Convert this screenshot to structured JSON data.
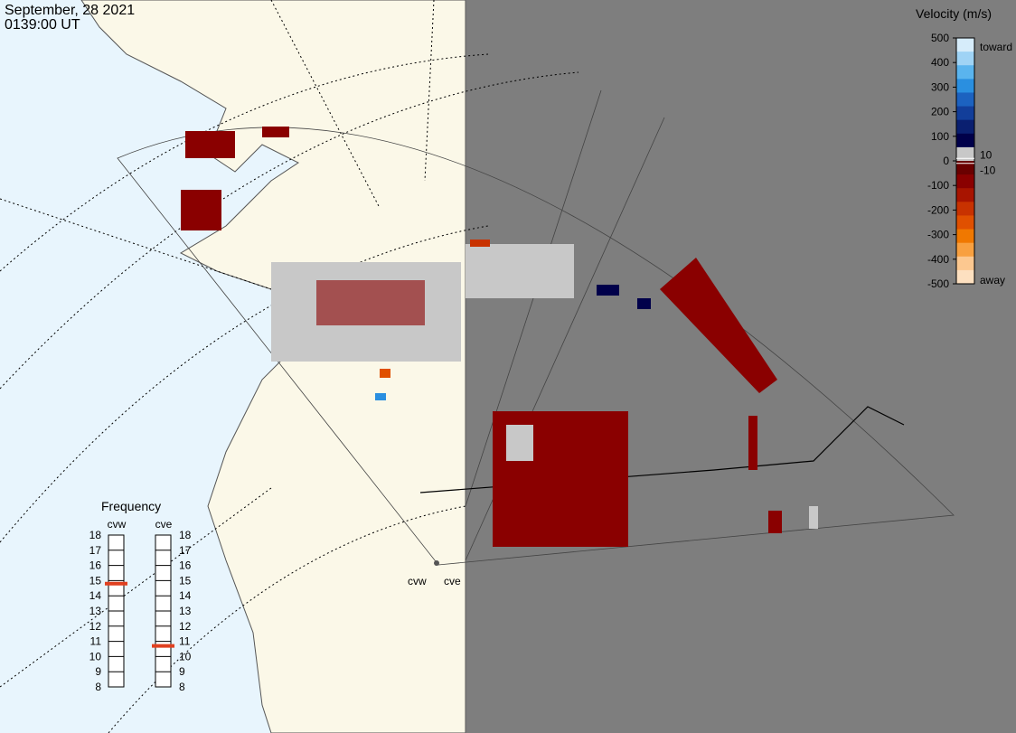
{
  "header": {
    "date": "September, 28 2021",
    "time": "0139:00 UT"
  },
  "velocity_scale": {
    "title": "Velocity (m/s)",
    "lim": [
      -500,
      500
    ],
    "ticks": [
      500,
      400,
      300,
      200,
      100,
      0,
      -100,
      -200,
      -300,
      -400,
      -500
    ],
    "inner_ticks": [
      10,
      -10
    ],
    "top_label": "toward",
    "bottom_label": "away",
    "palette": [
      "#d6ecfa",
      "#9fd3f5",
      "#5ab4ee",
      "#2a8fe0",
      "#1c62c0",
      "#123e9a",
      "#0a1f70",
      "#00004a",
      "#c8c8c8",
      "#6a0000",
      "#8a0000",
      "#a81400",
      "#c83200",
      "#e05000",
      "#f07800",
      "#f8a040",
      "#fcc890",
      "#fde0c0"
    ]
  },
  "frequency": {
    "title": "Frequency",
    "lim": [
      8,
      18
    ],
    "ticks": [
      18,
      17,
      16,
      15,
      14,
      13,
      12,
      11,
      10,
      9,
      8
    ],
    "color": "#e04020",
    "radars": [
      {
        "name": "cvw",
        "value": 14.8
      },
      {
        "name": "cve",
        "value": 10.7
      }
    ]
  },
  "map": {
    "radar_labels": [
      "cvw",
      "cve"
    ]
  }
}
